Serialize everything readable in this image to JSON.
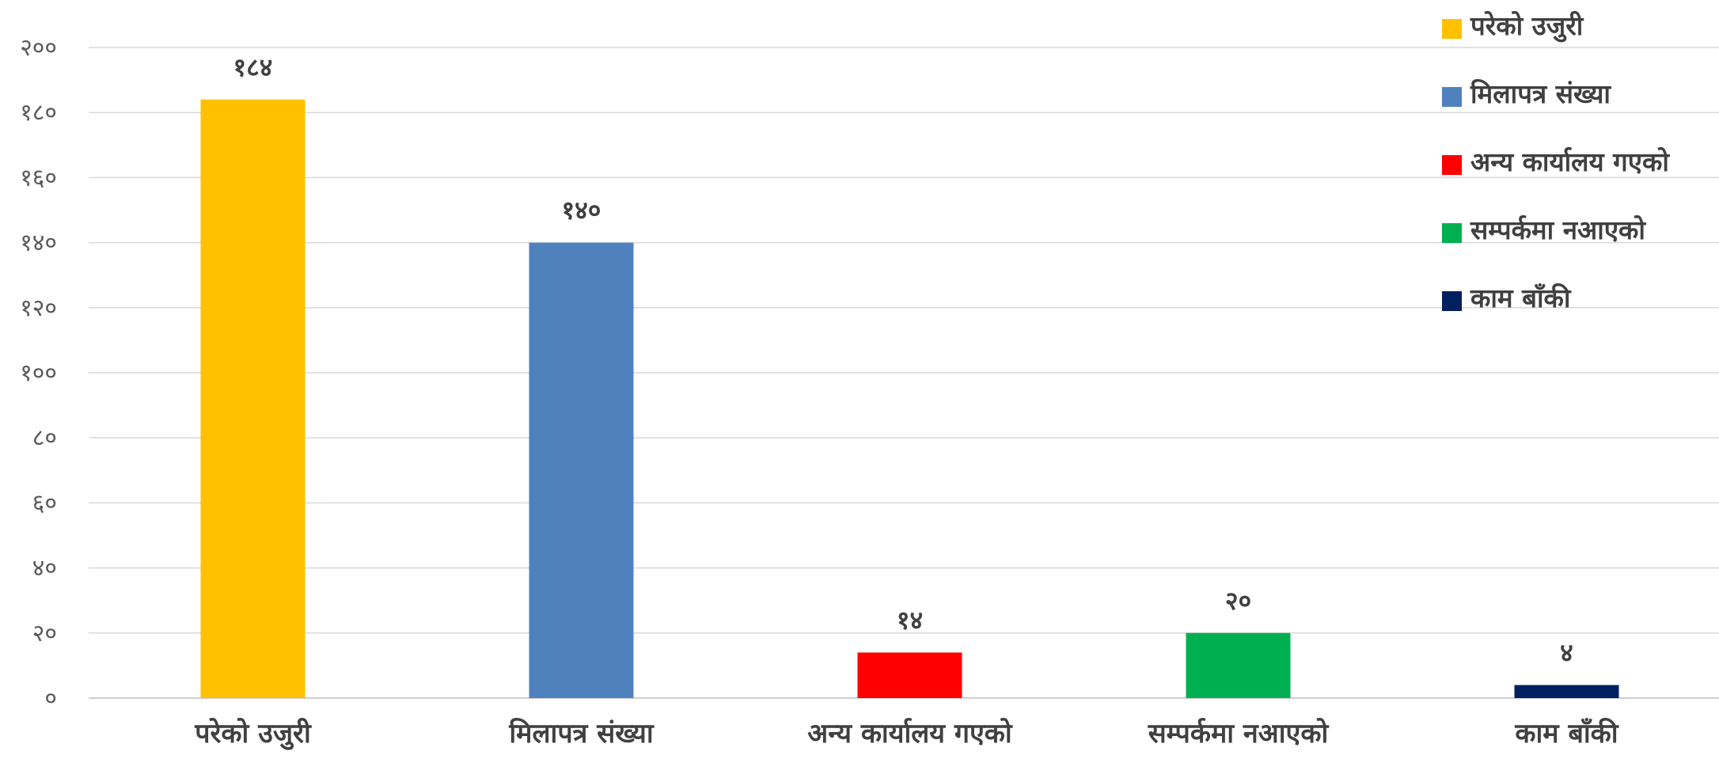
{
  "chart_data": {
    "type": "bar",
    "categories": [
      "परेको उजुरी",
      "मिलापत्र संख्या",
      "अन्य कार्यालय गएको",
      "सम्पर्कमा नआएको",
      "काम बाँकी"
    ],
    "values": [
      184,
      140,
      14,
      20,
      4
    ],
    "data_labels": [
      "१८४",
      "१४०",
      "१४",
      "२०",
      "४"
    ],
    "colors": [
      "#FFC000",
      "#4F81BD",
      "#FF0000",
      "#00B050",
      "#002060"
    ],
    "ylim": [
      0,
      200
    ],
    "y_ticks": [
      0,
      20,
      40,
      60,
      80,
      100,
      120,
      140,
      160,
      180,
      200
    ],
    "y_tick_labels": [
      "०",
      "२०",
      "४०",
      "६०",
      "८०",
      "१००",
      "१२०",
      "१४०",
      "१६०",
      "१८०",
      "२००"
    ],
    "legend": [
      "परेको उजुरी",
      "मिलापत्र संख्या",
      "अन्य कार्यालय गएको",
      "सम्पर्कमा नआएको",
      "काम बाँकी"
    ],
    "legend_position": "top-right",
    "grid": true,
    "title": "",
    "xlabel": "",
    "ylabel": ""
  }
}
